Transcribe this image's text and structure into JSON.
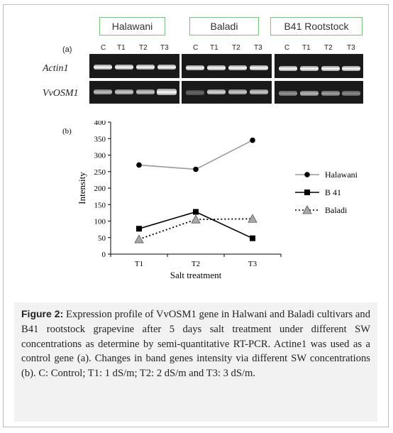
{
  "gel": {
    "panel_label": "(a)",
    "groups": [
      {
        "name": "Halawani",
        "lanes": [
          "C",
          "T1",
          "T2",
          "T3"
        ]
      },
      {
        "name": "Baladi",
        "lanes": [
          "C",
          "T1",
          "T2",
          "T3"
        ]
      },
      {
        "name": "B41 Rootstock",
        "lanes": [
          "C",
          "T1",
          "T2",
          "T3"
        ]
      }
    ],
    "rows": [
      "Actin1",
      "VvOSM1"
    ]
  },
  "chart_data": {
    "type": "line",
    "panel_label": "(b)",
    "title": "",
    "xlabel": "Salt treatment",
    "ylabel": "Intensity",
    "categories": [
      "T1",
      "T2",
      "T3"
    ],
    "ylim": [
      0,
      400
    ],
    "yticks": [
      0,
      50,
      100,
      150,
      200,
      250,
      300,
      350,
      400
    ],
    "legend_position": "right",
    "series": [
      {
        "name": "Halawani",
        "values": [
          270,
          257,
          345
        ],
        "marker": "circle",
        "color": "#999999",
        "dash": "solid"
      },
      {
        "name": "B 41",
        "values": [
          77,
          128,
          48
        ],
        "marker": "square",
        "color": "#000000",
        "dash": "solid"
      },
      {
        "name": "Baladi",
        "values": [
          45,
          105,
          107
        ],
        "marker": "triangle",
        "color": "#000000",
        "dash": "dotted"
      }
    ]
  },
  "caption": {
    "label": "Figure 2:",
    "text": " Expression profile of VvOSM1 gene in Halwani and Baladi cultivars and B41 rootstock grapevine after 5 days salt treatment under different SW concentrations as determine by semi-quantitative RT-PCR. Actine1 was used as a control gene (a). Changes in band genes intensity via different SW concentrations (b). C: Control; T1: 1 dS/m; T2: 2 dS/m and T3: 3 dS/m."
  }
}
